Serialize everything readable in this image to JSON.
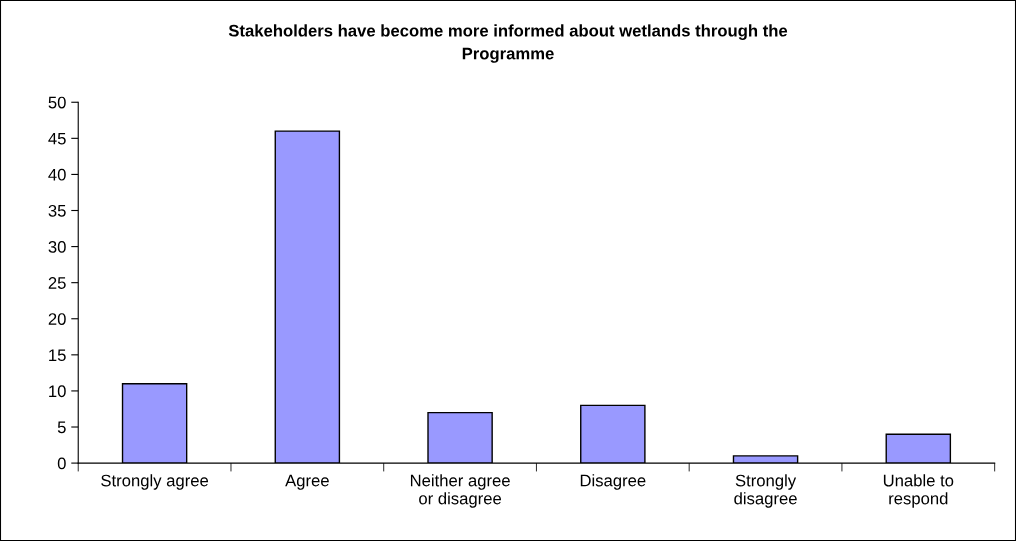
{
  "chart_data": {
    "type": "bar",
    "title": "Stakeholders have become more informed about wetlands through the Programme",
    "categories": [
      "Strongly agree",
      "Agree",
      "Neither agree or disagree",
      "Disagree",
      "Strongly disagree",
      "Unable to respond"
    ],
    "values": [
      11,
      46,
      7,
      8,
      1,
      4
    ],
    "color": "#9999ff",
    "ylim": [
      0,
      50
    ],
    "yticks": [
      0,
      5,
      10,
      15,
      20,
      25,
      30,
      35,
      40,
      45,
      50
    ],
    "grid": false,
    "legend": false
  }
}
